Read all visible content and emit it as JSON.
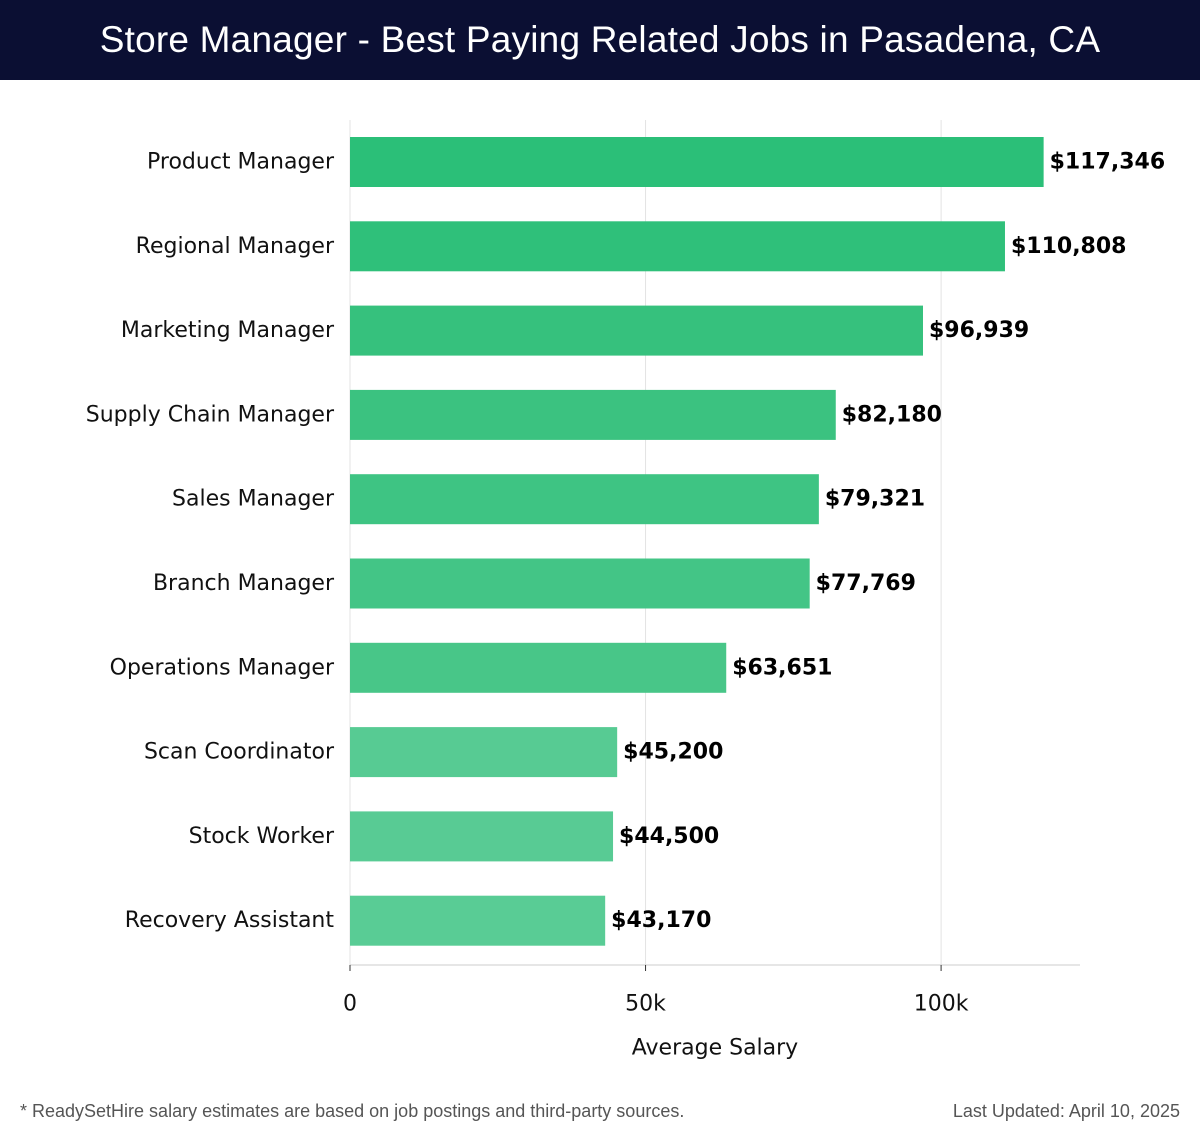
{
  "header": {
    "title": "Store Manager - Best Paying Related Jobs in Pasadena, CA"
  },
  "chart_data": {
    "type": "bar",
    "orientation": "horizontal",
    "title": "Store Manager - Best Paying Related Jobs in Pasadena, CA",
    "xlabel": "Average Salary",
    "ylabel": "",
    "xlim": [
      0,
      123500
    ],
    "xticks": [
      0,
      50000,
      100000
    ],
    "xtick_labels": [
      "0",
      "50k",
      "100k"
    ],
    "grid": "vertical",
    "categories": [
      "Product Manager",
      "Regional Manager",
      "Marketing Manager",
      "Supply Chain Manager",
      "Sales Manager",
      "Branch Manager",
      "Operations Manager",
      "Scan Coordinator",
      "Stock Worker",
      "Recovery Assistant"
    ],
    "values": [
      117346,
      110808,
      96939,
      82180,
      79321,
      77769,
      63651,
      45200,
      44500,
      43170
    ],
    "value_labels": [
      "$117,346",
      "$110,808",
      "$96,939",
      "$82,180",
      "$79,321",
      "$77,769",
      "$63,651",
      "$45,200",
      "$44,500",
      "$43,170"
    ],
    "colors": [
      "#2bbf78",
      "#2fc07a",
      "#36c17d",
      "#3bc280",
      "#3ec483",
      "#43c586",
      "#48c688",
      "#57cb93",
      "#58cb94",
      "#59cc95"
    ]
  },
  "footer": {
    "note": "* ReadySetHire salary estimates are based on job postings and third-party sources.",
    "updated": "Last Updated: April 10, 2025"
  }
}
